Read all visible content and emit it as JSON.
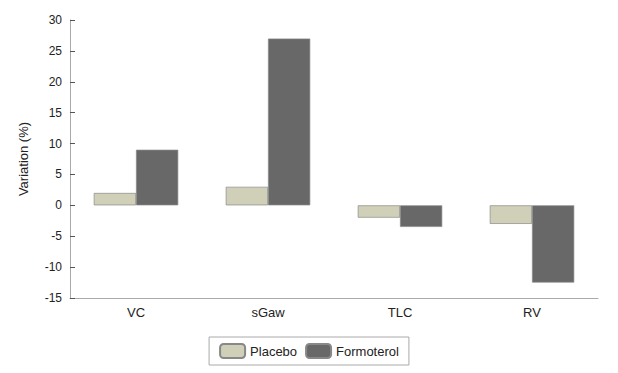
{
  "chart_data": {
    "type": "bar",
    "categories": [
      "VC",
      "sGaw",
      "TLC",
      "RV"
    ],
    "series": [
      {
        "name": "Placebo",
        "color": "#d0d0b8",
        "values": [
          2.0,
          3.0,
          -2.0,
          -3.0
        ]
      },
      {
        "name": "Formoterol",
        "color": "#686868",
        "values": [
          9.0,
          27.0,
          -3.5,
          -12.5
        ]
      }
    ],
    "ylabel": "Variation (%)",
    "ylim": [
      -15,
      30
    ],
    "yticks": [
      -15,
      -10,
      -5,
      0,
      5,
      10,
      15,
      20,
      25,
      30
    ],
    "grid": false,
    "legend": "bottom"
  }
}
